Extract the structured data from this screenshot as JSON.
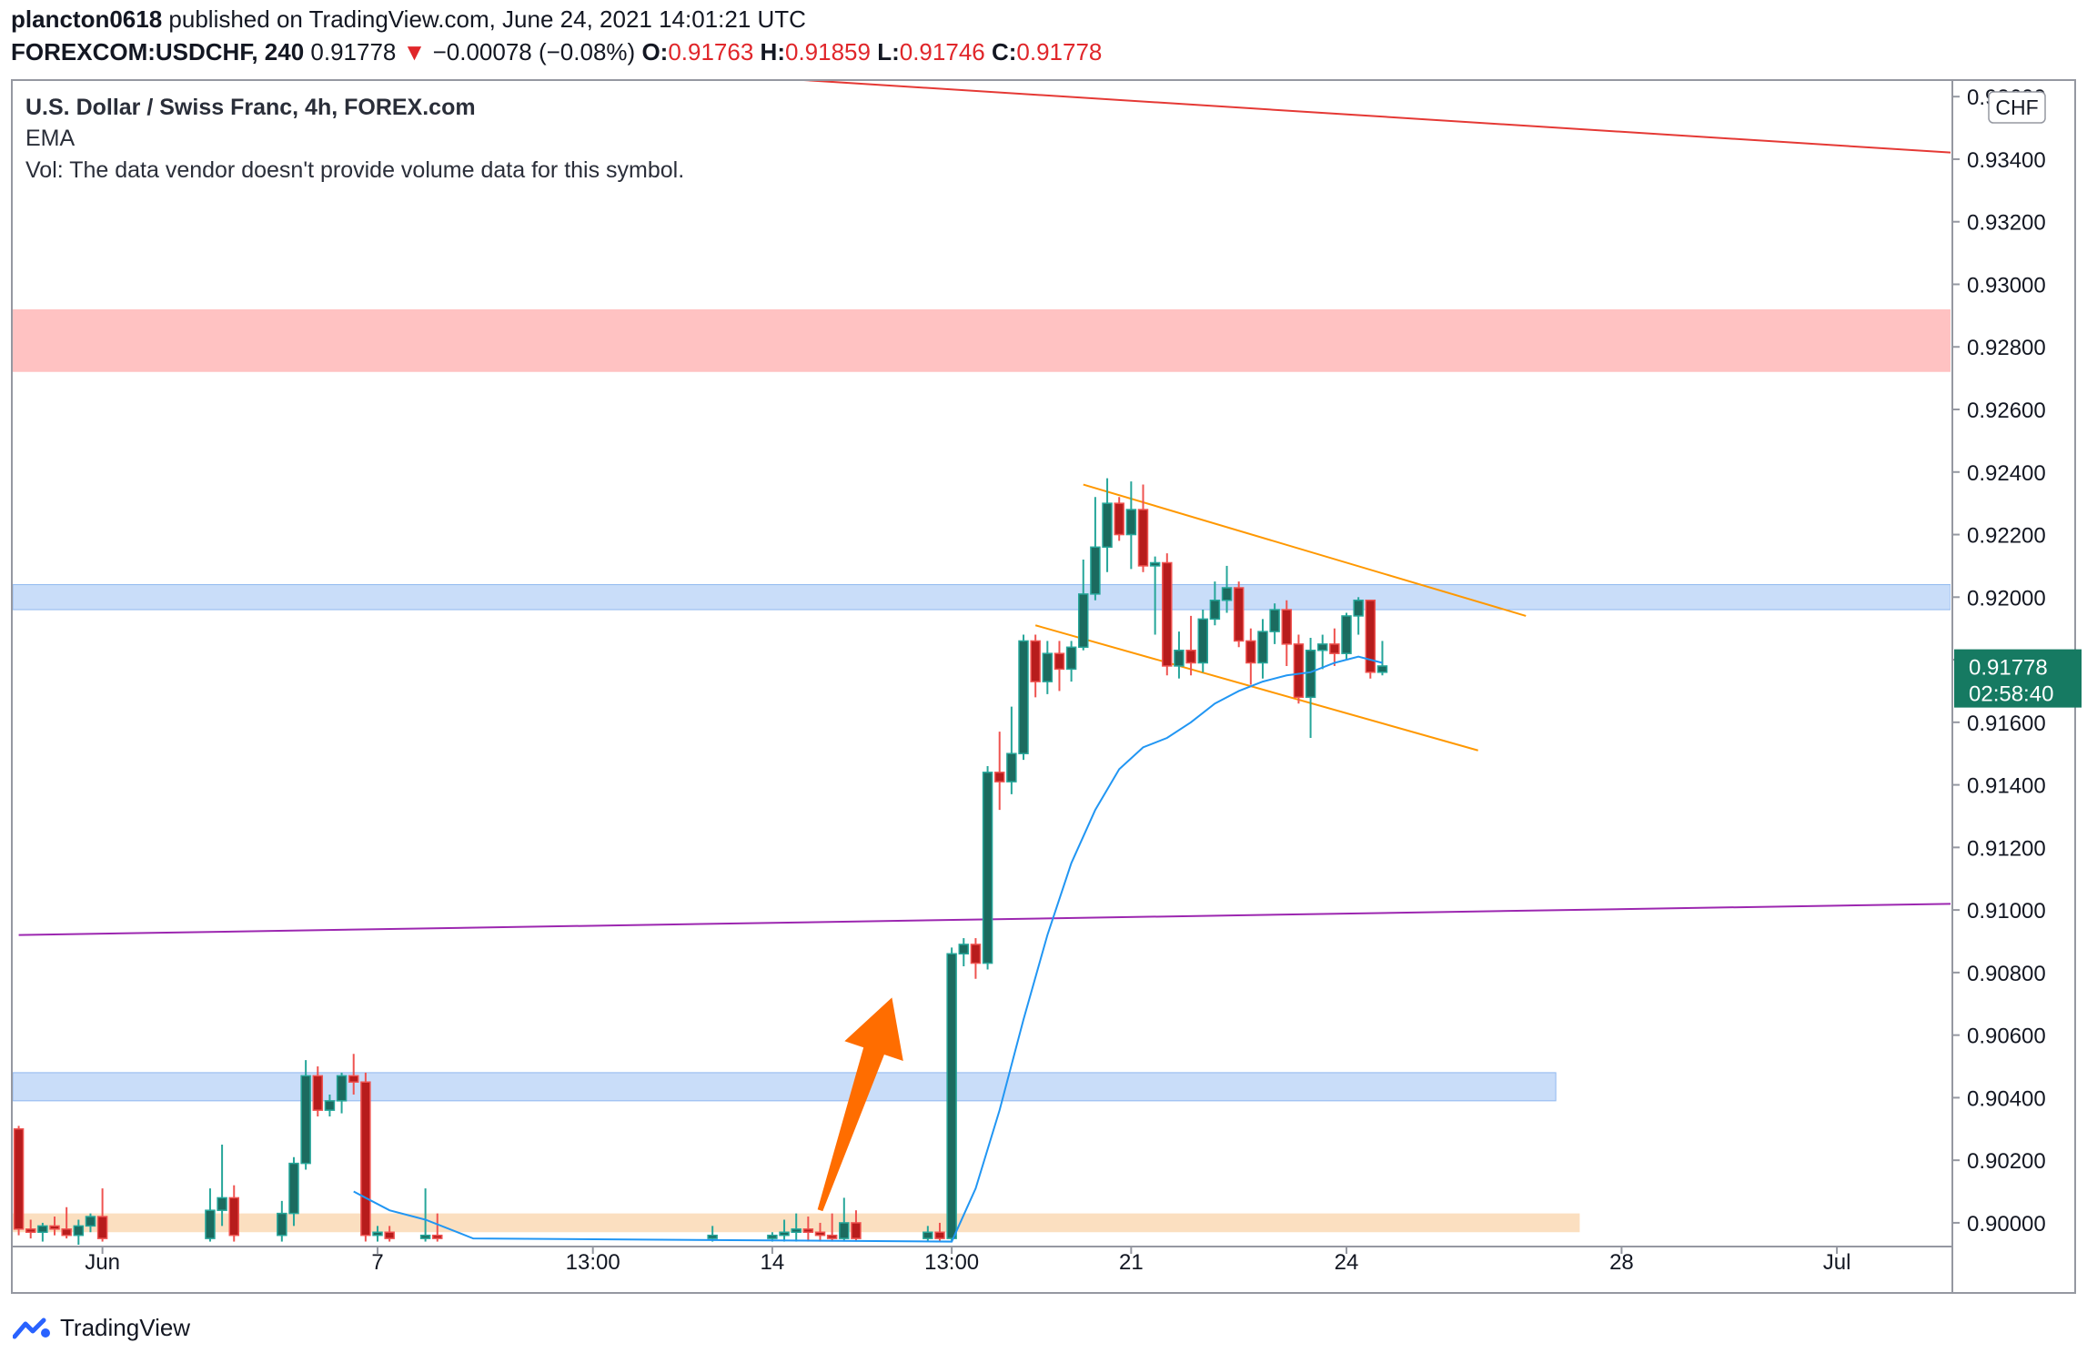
{
  "header": {
    "publisher": "plancton0618",
    "published_text": "published on TradingView.com, June 24, 2021 14:01:21 UTC",
    "symbol": "FOREXCOM:USDCHF, 240",
    "last": "0.91778",
    "change_arrow": "▼",
    "change": "−0.00078 (−0.08%)",
    "o_label": "O:",
    "o": "0.91763",
    "h_label": "H:",
    "h": "0.91859",
    "l_label": "L:",
    "l": "0.91746",
    "c_label": "C:",
    "c": "0.91778"
  },
  "legend": {
    "title": "U.S. Dollar / Swiss Franc, 4h, FOREX.com",
    "ema": "EMA",
    "vol": "Vol: The data vendor doesn't provide volume data for this symbol."
  },
  "footer": {
    "brand": "TradingView",
    "icon": "tradingview-logo-icon"
  },
  "colors": {
    "up": "#26a69a",
    "down": "#ef5350",
    "up_body": "#1b6b5f",
    "down_body": "#b71c1c",
    "ema": "#2196f3",
    "red_line": "#e53935",
    "purple_line": "#9c27b0",
    "channel": "#ff9800",
    "arrow": "#ff6d00",
    "zone_red": "#ffb3b3",
    "zone_blue": "#bbd5f7",
    "zone_orange": "#fad7b0",
    "price_label_bg": "#167a62"
  },
  "chart_data": {
    "type": "candlestick",
    "symbol": "USDCHF",
    "timeframe": "4h",
    "currency": "CHF",
    "ylim": [
      0.8993,
      0.9365
    ],
    "y_ticks": [
      "0.93600",
      "0.93400",
      "0.93200",
      "0.93000",
      "0.92800",
      "0.92600",
      "0.92400",
      "0.92200",
      "0.92000",
      "0.91800",
      "0.91600",
      "0.91400",
      "0.91200",
      "0.91000",
      "0.90800",
      "0.90600",
      "0.90400",
      "0.90200",
      "0.90000"
    ],
    "x_ticks": [
      {
        "label": "Jun",
        "bar": 7
      },
      {
        "label": "7",
        "bar": 30
      },
      {
        "label": "13:00",
        "bar": 48
      },
      {
        "label": "14",
        "bar": 63
      },
      {
        "label": "13:00",
        "bar": 78
      },
      {
        "label": "21",
        "bar": 93
      },
      {
        "label": "24",
        "bar": 111
      },
      {
        "label": "28",
        "bar": 134
      },
      {
        "label": "Jul",
        "bar": 152
      }
    ],
    "bars_total": 162,
    "current_price": "0.91778",
    "countdown": "02:58:40",
    "candles": [
      {
        "i": 0,
        "o": 0.903,
        "h": 0.9031,
        "l": 0.8996,
        "c": 0.8998
      },
      {
        "i": 1,
        "o": 0.8998,
        "h": 0.9001,
        "l": 0.8995,
        "c": 0.8997
      },
      {
        "i": 2,
        "o": 0.8997,
        "h": 0.9,
        "l": 0.8994,
        "c": 0.8999
      },
      {
        "i": 3,
        "o": 0.8999,
        "h": 0.9002,
        "l": 0.8996,
        "c": 0.8998
      },
      {
        "i": 4,
        "o": 0.8998,
        "h": 0.9005,
        "l": 0.8995,
        "c": 0.8996
      },
      {
        "i": 5,
        "o": 0.8996,
        "h": 0.9001,
        "l": 0.8993,
        "c": 0.8999
      },
      {
        "i": 6,
        "o": 0.8999,
        "h": 0.9003,
        "l": 0.8997,
        "c": 0.9002
      },
      {
        "i": 7,
        "o": 0.9002,
        "h": 0.9011,
        "l": 0.8994,
        "c": 0.8995
      },
      {
        "i": 16,
        "o": 0.8995,
        "h": 0.9011,
        "l": 0.8994,
        "c": 0.9004
      },
      {
        "i": 17,
        "o": 0.9004,
        "h": 0.9025,
        "l": 0.8999,
        "c": 0.9008
      },
      {
        "i": 18,
        "o": 0.9008,
        "h": 0.9012,
        "l": 0.8994,
        "c": 0.8996
      },
      {
        "i": 22,
        "o": 0.8996,
        "h": 0.9007,
        "l": 0.8994,
        "c": 0.9003
      },
      {
        "i": 23,
        "o": 0.9003,
        "h": 0.9021,
        "l": 0.8999,
        "c": 0.9019
      },
      {
        "i": 24,
        "o": 0.9019,
        "h": 0.9052,
        "l": 0.9017,
        "c": 0.9047
      },
      {
        "i": 25,
        "o": 0.9047,
        "h": 0.905,
        "l": 0.9034,
        "c": 0.9036
      },
      {
        "i": 26,
        "o": 0.9036,
        "h": 0.9041,
        "l": 0.9034,
        "c": 0.9039
      },
      {
        "i": 27,
        "o": 0.9039,
        "h": 0.9048,
        "l": 0.9035,
        "c": 0.9047
      },
      {
        "i": 28,
        "o": 0.9047,
        "h": 0.9054,
        "l": 0.9041,
        "c": 0.9045
      },
      {
        "i": 29,
        "o": 0.9045,
        "h": 0.9048,
        "l": 0.8994,
        "c": 0.8996
      },
      {
        "i": 30,
        "o": 0.8996,
        "h": 0.8999,
        "l": 0.8994,
        "c": 0.8997
      },
      {
        "i": 31,
        "o": 0.8997,
        "h": 0.8999,
        "l": 0.8994,
        "c": 0.8995
      },
      {
        "i": 34,
        "o": 0.8995,
        "h": 0.9011,
        "l": 0.8994,
        "c": 0.8996
      },
      {
        "i": 35,
        "o": 0.8996,
        "h": 0.9003,
        "l": 0.8994,
        "c": 0.8995
      },
      {
        "i": 58,
        "o": 0.8995,
        "h": 0.8999,
        "l": 0.8994,
        "c": 0.8996
      },
      {
        "i": 63,
        "o": 0.8995,
        "h": 0.8997,
        "l": 0.8994,
        "c": 0.8996
      },
      {
        "i": 64,
        "o": 0.8996,
        "h": 0.9001,
        "l": 0.8994,
        "c": 0.8997
      },
      {
        "i": 65,
        "o": 0.8997,
        "h": 0.9003,
        "l": 0.8994,
        "c": 0.8998
      },
      {
        "i": 66,
        "o": 0.8998,
        "h": 0.9002,
        "l": 0.8994,
        "c": 0.8997
      },
      {
        "i": 67,
        "o": 0.8997,
        "h": 0.9,
        "l": 0.8994,
        "c": 0.8996
      },
      {
        "i": 68,
        "o": 0.8996,
        "h": 0.9003,
        "l": 0.8994,
        "c": 0.8995
      },
      {
        "i": 69,
        "o": 0.8995,
        "h": 0.9008,
        "l": 0.8994,
        "c": 0.9
      },
      {
        "i": 70,
        "o": 0.9,
        "h": 0.9004,
        "l": 0.8994,
        "c": 0.8995
      },
      {
        "i": 76,
        "o": 0.8995,
        "h": 0.8999,
        "l": 0.8994,
        "c": 0.8997
      },
      {
        "i": 77,
        "o": 0.8997,
        "h": 0.9,
        "l": 0.8994,
        "c": 0.8995
      },
      {
        "i": 78,
        "o": 0.8995,
        "h": 0.9088,
        "l": 0.8994,
        "c": 0.9086
      },
      {
        "i": 79,
        "o": 0.9086,
        "h": 0.9091,
        "l": 0.9082,
        "c": 0.9089
      },
      {
        "i": 80,
        "o": 0.9089,
        "h": 0.9091,
        "l": 0.9078,
        "c": 0.9083
      },
      {
        "i": 81,
        "o": 0.9083,
        "h": 0.9146,
        "l": 0.9081,
        "c": 0.9144
      },
      {
        "i": 82,
        "o": 0.9144,
        "h": 0.9157,
        "l": 0.9132,
        "c": 0.9141
      },
      {
        "i": 83,
        "o": 0.9141,
        "h": 0.9165,
        "l": 0.9137,
        "c": 0.915
      },
      {
        "i": 84,
        "o": 0.915,
        "h": 0.9188,
        "l": 0.9148,
        "c": 0.9186
      },
      {
        "i": 85,
        "o": 0.9186,
        "h": 0.9188,
        "l": 0.9168,
        "c": 0.9173
      },
      {
        "i": 86,
        "o": 0.9173,
        "h": 0.9186,
        "l": 0.9169,
        "c": 0.9182
      },
      {
        "i": 87,
        "o": 0.9182,
        "h": 0.9186,
        "l": 0.917,
        "c": 0.9177
      },
      {
        "i": 88,
        "o": 0.9177,
        "h": 0.9186,
        "l": 0.9173,
        "c": 0.9184
      },
      {
        "i": 89,
        "o": 0.9184,
        "h": 0.9212,
        "l": 0.9183,
        "c": 0.9201
      },
      {
        "i": 90,
        "o": 0.9201,
        "h": 0.9232,
        "l": 0.9199,
        "c": 0.9216
      },
      {
        "i": 91,
        "o": 0.9216,
        "h": 0.9238,
        "l": 0.9208,
        "c": 0.923
      },
      {
        "i": 92,
        "o": 0.923,
        "h": 0.9232,
        "l": 0.9218,
        "c": 0.922
      },
      {
        "i": 93,
        "o": 0.922,
        "h": 0.9237,
        "l": 0.9209,
        "c": 0.9228
      },
      {
        "i": 94,
        "o": 0.9228,
        "h": 0.9236,
        "l": 0.9208,
        "c": 0.921
      },
      {
        "i": 95,
        "o": 0.921,
        "h": 0.9213,
        "l": 0.9188,
        "c": 0.9211
      },
      {
        "i": 96,
        "o": 0.9211,
        "h": 0.9214,
        "l": 0.9175,
        "c": 0.9178
      },
      {
        "i": 97,
        "o": 0.9178,
        "h": 0.9189,
        "l": 0.9174,
        "c": 0.9183
      },
      {
        "i": 98,
        "o": 0.9183,
        "h": 0.9194,
        "l": 0.9175,
        "c": 0.9179
      },
      {
        "i": 99,
        "o": 0.9179,
        "h": 0.9196,
        "l": 0.9176,
        "c": 0.9193
      },
      {
        "i": 100,
        "o": 0.9193,
        "h": 0.9205,
        "l": 0.9191,
        "c": 0.9199
      },
      {
        "i": 101,
        "o": 0.9199,
        "h": 0.921,
        "l": 0.9195,
        "c": 0.9203
      },
      {
        "i": 102,
        "o": 0.9203,
        "h": 0.9205,
        "l": 0.9184,
        "c": 0.9186
      },
      {
        "i": 103,
        "o": 0.9186,
        "h": 0.919,
        "l": 0.9172,
        "c": 0.9179
      },
      {
        "i": 104,
        "o": 0.9179,
        "h": 0.9193,
        "l": 0.9174,
        "c": 0.9189
      },
      {
        "i": 105,
        "o": 0.9189,
        "h": 0.9198,
        "l": 0.9185,
        "c": 0.9196
      },
      {
        "i": 106,
        "o": 0.9196,
        "h": 0.9199,
        "l": 0.9178,
        "c": 0.9185
      },
      {
        "i": 107,
        "o": 0.9185,
        "h": 0.9188,
        "l": 0.9166,
        "c": 0.9168
      },
      {
        "i": 108,
        "o": 0.9168,
        "h": 0.9187,
        "l": 0.9155,
        "c": 0.9183
      },
      {
        "i": 109,
        "o": 0.9183,
        "h": 0.9188,
        "l": 0.9177,
        "c": 0.9185
      },
      {
        "i": 110,
        "o": 0.9185,
        "h": 0.919,
        "l": 0.9178,
        "c": 0.9182
      },
      {
        "i": 111,
        "o": 0.9182,
        "h": 0.9195,
        "l": 0.918,
        "c": 0.9194
      },
      {
        "i": 112,
        "o": 0.9194,
        "h": 0.92,
        "l": 0.9188,
        "c": 0.9199
      },
      {
        "i": 113,
        "o": 0.9199,
        "h": 0.9199,
        "l": 0.9174,
        "c": 0.9176
      },
      {
        "i": 114,
        "o": 0.9176,
        "h": 0.9186,
        "l": 0.9175,
        "c": 0.9178
      }
    ],
    "ema": [
      {
        "i": 28,
        "v": 0.901
      },
      {
        "i": 29,
        "v": 0.9008
      },
      {
        "i": 31,
        "v": 0.9004
      },
      {
        "i": 34,
        "v": 0.9001
      },
      {
        "i": 38,
        "v": 0.8995
      },
      {
        "i": 78,
        "v": 0.8994
      },
      {
        "i": 80,
        "v": 0.9011
      },
      {
        "i": 82,
        "v": 0.9036
      },
      {
        "i": 84,
        "v": 0.9065
      },
      {
        "i": 86,
        "v": 0.9092
      },
      {
        "i": 88,
        "v": 0.9115
      },
      {
        "i": 90,
        "v": 0.9132
      },
      {
        "i": 92,
        "v": 0.9145
      },
      {
        "i": 94,
        "v": 0.9152
      },
      {
        "i": 96,
        "v": 0.9155
      },
      {
        "i": 98,
        "v": 0.916
      },
      {
        "i": 100,
        "v": 0.9166
      },
      {
        "i": 102,
        "v": 0.917
      },
      {
        "i": 104,
        "v": 0.9173
      },
      {
        "i": 106,
        "v": 0.9175
      },
      {
        "i": 108,
        "v": 0.9176
      },
      {
        "i": 110,
        "v": 0.9179
      },
      {
        "i": 112,
        "v": 0.9181
      },
      {
        "i": 114,
        "v": 0.9179
      }
    ],
    "zones": [
      {
        "name": "resistance-zone-red",
        "from": 0.9272,
        "to": 0.9292,
        "start_bar": 0,
        "end_bar": 162
      },
      {
        "name": "resistance-zone-blue",
        "from": 0.9196,
        "to": 0.9204,
        "start_bar": 0,
        "end_bar": 162
      },
      {
        "name": "support-zone-blue",
        "from": 0.9039,
        "to": 0.9048,
        "start_bar": 0,
        "end_bar": 129
      },
      {
        "name": "support-zone-orange",
        "from": 0.8997,
        "to": 0.9003,
        "start_bar": 0,
        "end_bar": 131
      }
    ],
    "lines": [
      {
        "name": "downtrend-line-red",
        "p1": {
          "bar": 42,
          "v": 0.9371
        },
        "p2": {
          "bar": 162,
          "v": 0.9342
        }
      },
      {
        "name": "horizontal-line-purple",
        "p1": {
          "bar": 0,
          "v": 0.9092
        },
        "p2": {
          "bar": 162,
          "v": 0.9102
        }
      },
      {
        "name": "channel-upper",
        "p1": {
          "bar": 89,
          "v": 0.9236
        },
        "p2": {
          "bar": 126,
          "v": 0.9194
        }
      },
      {
        "name": "channel-lower",
        "p1": {
          "bar": 85,
          "v": 0.9191
        },
        "p2": {
          "bar": 122,
          "v": 0.9151
        }
      }
    ],
    "arrow": {
      "from": {
        "bar": 67,
        "v": 0.9004
      },
      "to": {
        "bar": 73,
        "v": 0.9072
      }
    }
  }
}
